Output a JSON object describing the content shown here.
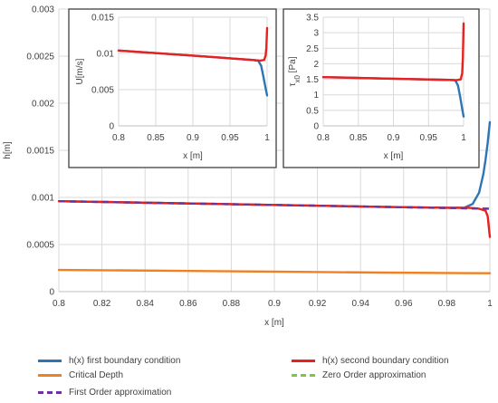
{
  "chart_data": [
    {
      "id": "main",
      "type": "line",
      "xlabel": "x [m]",
      "ylabel": "h[m]",
      "xlim": [
        0.8,
        1.0
      ],
      "ylim": [
        0,
        0.003
      ],
      "xticks": [
        "0.8",
        "0.82",
        "0.84",
        "0.86",
        "0.88",
        "0.9",
        "0.92",
        "0.94",
        "0.96",
        "0.98",
        "1"
      ],
      "yticks": [
        "0",
        "0.0005",
        "0.001",
        "0.0015",
        "0.002",
        "0.0025",
        "0.003"
      ],
      "grid": true,
      "series": [
        {
          "name": "h(x) first boundary condition",
          "color": "#2e75b6",
          "dash": "solid",
          "x": [
            0.8,
            0.85,
            0.9,
            0.95,
            0.98,
            0.988,
            0.992,
            0.995,
            0.997,
            0.998,
            0.999,
            1.0
          ],
          "y": [
            0.00096,
            0.00094,
            0.00092,
            0.0009,
            0.00089,
            0.00089,
            0.00093,
            0.00105,
            0.00125,
            0.0014,
            0.00158,
            0.0018
          ]
        },
        {
          "name": "h(x) second boundary condition",
          "color": "#e8201e",
          "dash": "solid",
          "x": [
            0.8,
            0.85,
            0.9,
            0.95,
            0.98,
            0.99,
            0.995,
            0.998,
            0.999,
            1.0
          ],
          "y": [
            0.00096,
            0.00094,
            0.00092,
            0.0009,
            0.00089,
            0.00089,
            0.00088,
            0.00086,
            0.0008,
            0.00058
          ]
        },
        {
          "name": "Critical Depth",
          "color": "#f08122",
          "dash": "solid",
          "x": [
            0.8,
            0.85,
            0.9,
            0.95,
            1.0
          ],
          "y": [
            0.00023,
            0.000222,
            0.000212,
            0.000202,
            0.000195
          ]
        },
        {
          "name": "Zero Order approximation",
          "color": "#7ac943",
          "dash": "dashed",
          "x": [
            0.8,
            0.85,
            0.9,
            0.95,
            1.0
          ],
          "y": [
            0.00096,
            0.00094,
            0.00092,
            0.0009,
            0.00088
          ]
        },
        {
          "name": "First Order approximation",
          "color": "#7030a0",
          "dash": "dashed",
          "x": [
            0.8,
            0.85,
            0.9,
            0.95,
            1.0
          ],
          "y": [
            0.00096,
            0.00094,
            0.00092,
            0.0009,
            0.00088
          ]
        }
      ],
      "legend_position": "bottom"
    },
    {
      "id": "inset-u",
      "type": "line",
      "xlabel": "x [m]",
      "ylabel": "U[m/s]",
      "xlim": [
        0.8,
        1.0
      ],
      "ylim": [
        0,
        0.015
      ],
      "xticks": [
        "0.8",
        "0.85",
        "0.9",
        "0.95",
        "1"
      ],
      "yticks": [
        "0",
        "0.005",
        "0.01",
        "0.015"
      ],
      "grid": true,
      "series": [
        {
          "name": "h(x) first boundary condition",
          "color": "#2e75b6",
          "x": [
            0.8,
            0.9,
            0.98,
            0.988,
            0.992,
            0.995,
            0.998,
            1.0
          ],
          "y": [
            0.0104,
            0.0097,
            0.0091,
            0.009,
            0.0083,
            0.0068,
            0.0052,
            0.0042
          ]
        },
        {
          "name": "h(x) second boundary condition",
          "color": "#e8201e",
          "x": [
            0.8,
            0.9,
            0.98,
            0.99,
            0.996,
            0.998,
            0.999,
            1.0
          ],
          "y": [
            0.0104,
            0.0097,
            0.0091,
            0.009,
            0.0091,
            0.0097,
            0.0108,
            0.0135
          ]
        }
      ]
    },
    {
      "id": "inset-tau",
      "type": "line",
      "xlabel": "x [m]",
      "ylabel": "τ_x0 [Pa]",
      "ylabel_main": "τ",
      "ylabel_sub": "x0",
      "ylabel_unit": " [Pa]",
      "xlim": [
        0.8,
        1.0
      ],
      "ylim": [
        0,
        3.5
      ],
      "xticks": [
        "0.8",
        "0.85",
        "0.9",
        "0.95",
        "1"
      ],
      "yticks": [
        "0",
        "0.5",
        "1",
        "1.5",
        "2",
        "2.5",
        "3",
        "3.5"
      ],
      "grid": true,
      "series": [
        {
          "name": "h(x) first boundary condition",
          "color": "#2e75b6",
          "x": [
            0.8,
            0.9,
            0.98,
            0.988,
            0.992,
            0.995,
            0.998,
            1.0
          ],
          "y": [
            1.57,
            1.52,
            1.48,
            1.47,
            1.3,
            0.95,
            0.55,
            0.3
          ]
        },
        {
          "name": "h(x) second boundary condition",
          "color": "#e8201e",
          "x": [
            0.8,
            0.9,
            0.98,
            0.99,
            0.996,
            0.998,
            0.999,
            1.0
          ],
          "y": [
            1.57,
            1.52,
            1.48,
            1.47,
            1.5,
            1.7,
            2.2,
            3.3
          ]
        }
      ]
    }
  ],
  "legend": [
    {
      "label": "h(x) first boundary condition",
      "color": "#2e75b6",
      "dash": "solid"
    },
    {
      "label": "h(x) second boundary condition",
      "color": "#e8201e",
      "dash": "solid"
    },
    {
      "label": "Critical Depth",
      "color": "#f08122",
      "dash": "solid"
    },
    {
      "label": "Zero Order approximation",
      "color": "#7ac943",
      "dash": "dashed"
    },
    {
      "label": "First Order approximation",
      "color": "#7030a0",
      "dash": "dashed"
    }
  ]
}
